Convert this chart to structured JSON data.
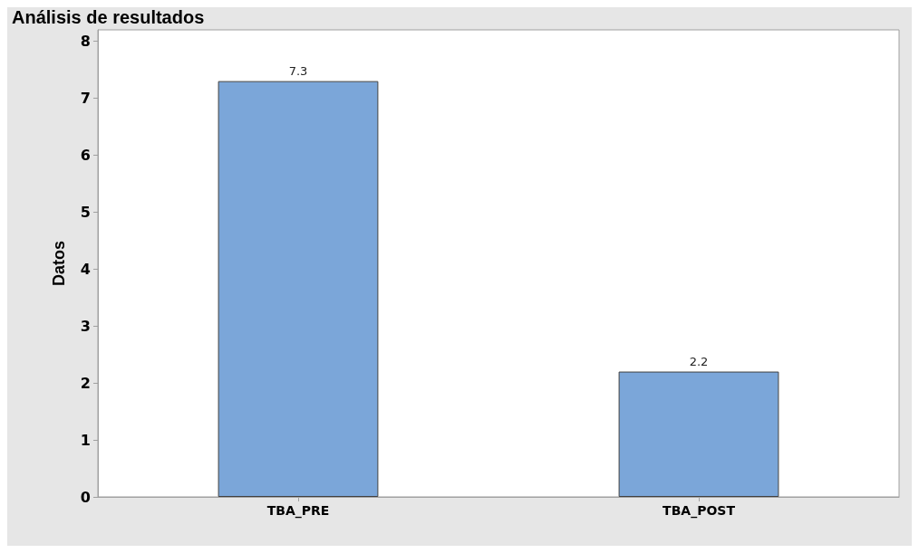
{
  "chart_data": {
    "type": "bar",
    "title": "Análisis de resultados",
    "ylabel": "Datos",
    "categories": [
      "TBA_PRE",
      "TBA_POST"
    ],
    "values": [
      7.3,
      2.2
    ],
    "color": "#7ba6d9",
    "ylim": [
      0,
      8.2
    ],
    "yticks": [
      0,
      1,
      2,
      3,
      4,
      5,
      6,
      7,
      8
    ],
    "data_labels": true,
    "grid": false
  }
}
